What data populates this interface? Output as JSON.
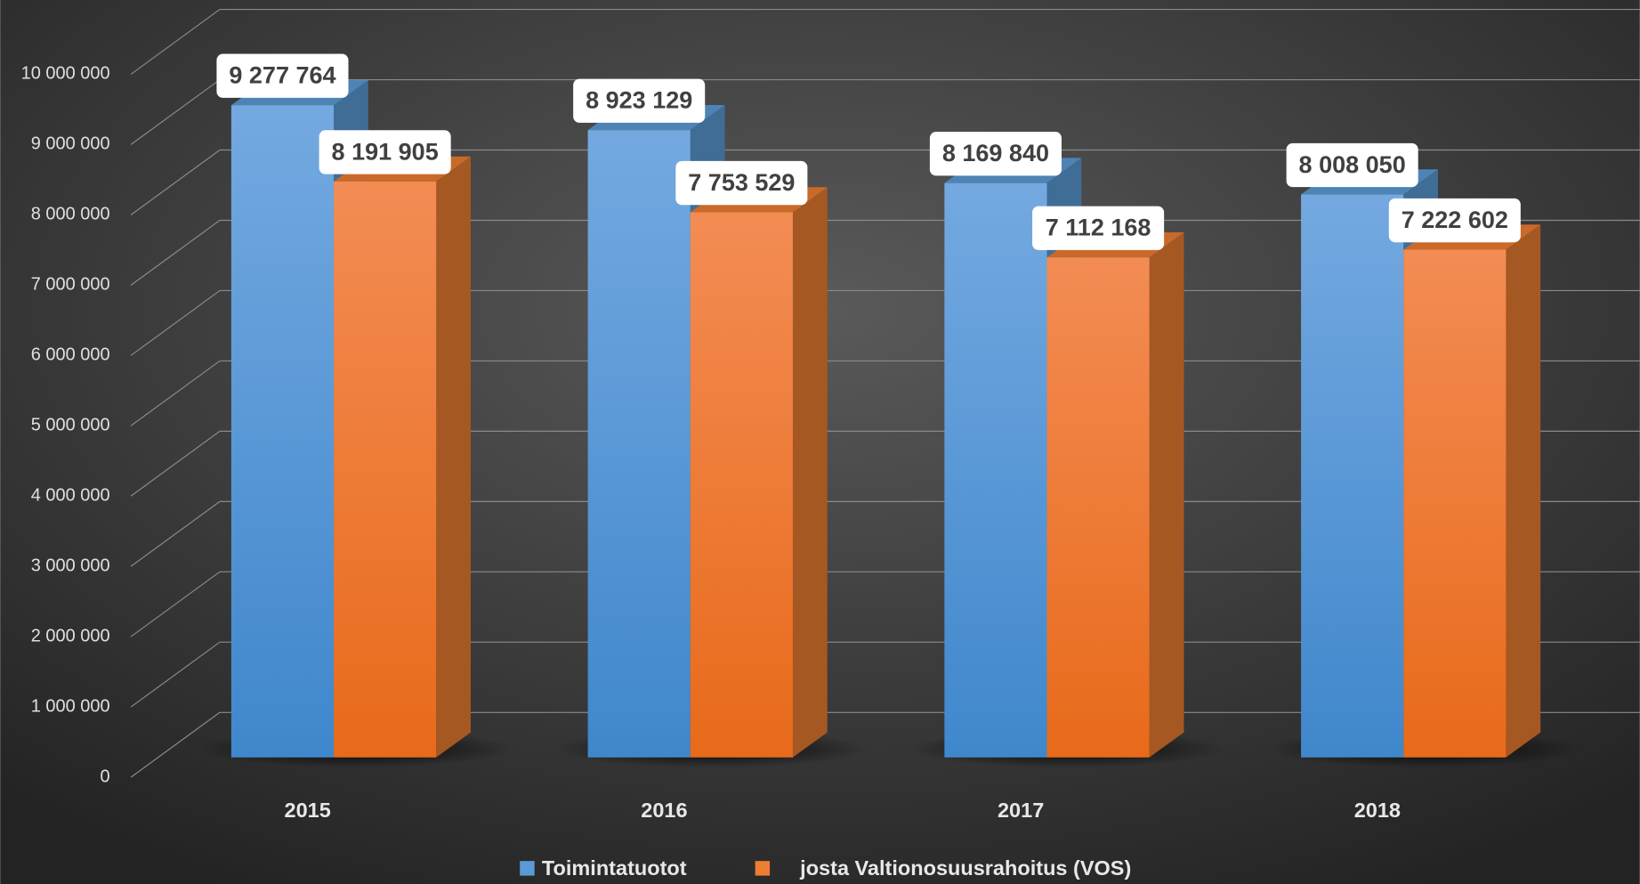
{
  "chart_data": {
    "type": "bar3d",
    "categories": [
      "2015",
      "2016",
      "2017",
      "2018"
    ],
    "series": [
      {
        "name": "Toimintatuotot",
        "color": "#5b9bd5",
        "values": [
          9277764,
          8923129,
          8169840,
          8008050
        ],
        "value_labels": [
          "9 277 764",
          "8 923 129",
          "8 169 840",
          "8 008 050"
        ]
      },
      {
        "name": "josta Valtionosuusrahoitus (VOS)",
        "color": "#ed7d31",
        "values": [
          8191905,
          7753529,
          7112168,
          7222602
        ],
        "value_labels": [
          "8 191 905",
          "7 753 529",
          "7 112 168",
          "7 222 602"
        ]
      }
    ],
    "ylim": [
      0,
      10000000
    ],
    "yticks": [
      0,
      {
        "value": 1000000,
        "label": "1 000 000"
      },
      {
        "value": 2000000,
        "label": "2 000 000"
      },
      {
        "value": 3000000,
        "label": "3 000 000"
      },
      {
        "value": 4000000,
        "label": "4 000 000"
      },
      {
        "value": 5000000,
        "label": "5 000 000"
      },
      {
        "value": 6000000,
        "label": "6 000 000"
      },
      {
        "value": 7000000,
        "label": "7 000 000"
      },
      {
        "value": 8000000,
        "label": "8 000 000"
      },
      {
        "value": 9000000,
        "label": "9 000 000"
      },
      {
        "value": 10000000,
        "label": "10 000 000"
      }
    ],
    "grid": true,
    "legend": "bottom"
  }
}
